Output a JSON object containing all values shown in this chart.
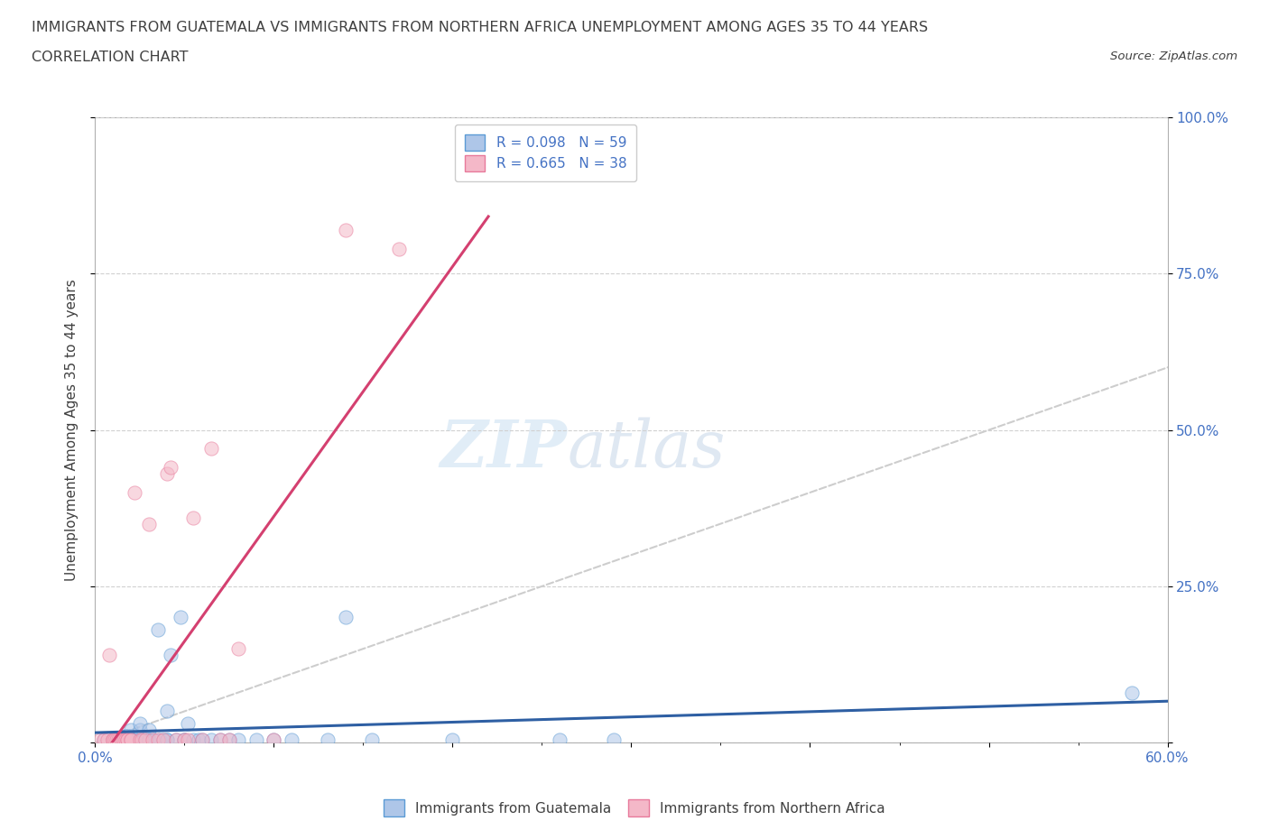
{
  "title_line1": "IMMIGRANTS FROM GUATEMALA VS IMMIGRANTS FROM NORTHERN AFRICA UNEMPLOYMENT AMONG AGES 35 TO 44 YEARS",
  "title_line2": "CORRELATION CHART",
  "source": "Source: ZipAtlas.com",
  "ylabel": "Unemployment Among Ages 35 to 44 years",
  "watermark_zip": "ZIP",
  "watermark_atlas": "atlas",
  "xlim": [
    0,
    0.6
  ],
  "ylim": [
    0,
    1.0
  ],
  "R_guatemala": 0.098,
  "N_guatemala": 59,
  "R_n_africa": 0.665,
  "N_n_africa": 38,
  "legend_label_1": "Immigrants from Guatemala",
  "legend_label_2": "Immigrants from Northern Africa",
  "guatemala_color": "#aec6e8",
  "guatemala_edge": "#5b9bd5",
  "n_africa_color": "#f4b8c8",
  "n_africa_edge": "#e87a9b",
  "trend_color_guatemala": "#2e5fa3",
  "trend_color_n_africa": "#d44070",
  "diagonal_color": "#c8c8c8",
  "label_color": "#4472c4",
  "text_color": "#404040",
  "grid_color": "#d0d0d0",
  "background_color": "#ffffff",
  "title_fontsize": 11.5,
  "subtitle_fontsize": 11.5,
  "source_fontsize": 9.5,
  "axis_label_fontsize": 11,
  "tick_fontsize": 11,
  "legend_fontsize": 11,
  "marker_size": 120,
  "marker_alpha": 0.55,
  "guatemala_x": [
    0.005,
    0.01,
    0.012,
    0.015,
    0.016,
    0.017,
    0.017,
    0.018,
    0.018,
    0.019,
    0.02,
    0.02,
    0.02,
    0.02,
    0.02,
    0.021,
    0.022,
    0.022,
    0.023,
    0.025,
    0.025,
    0.025,
    0.025,
    0.027,
    0.028,
    0.03,
    0.03,
    0.03,
    0.03,
    0.033,
    0.035,
    0.036,
    0.038,
    0.04,
    0.04,
    0.04,
    0.042,
    0.045,
    0.048,
    0.05,
    0.05,
    0.052,
    0.055,
    0.058,
    0.06,
    0.065,
    0.07,
    0.075,
    0.08,
    0.09,
    0.1,
    0.11,
    0.13,
    0.14,
    0.155,
    0.2,
    0.26,
    0.29,
    0.58
  ],
  "guatemala_y": [
    0.005,
    0.005,
    0.005,
    0.005,
    0.005,
    0.01,
    0.01,
    0.01,
    0.01,
    0.005,
    0.005,
    0.005,
    0.01,
    0.01,
    0.02,
    0.005,
    0.005,
    0.005,
    0.005,
    0.005,
    0.005,
    0.02,
    0.03,
    0.005,
    0.005,
    0.005,
    0.005,
    0.02,
    0.005,
    0.005,
    0.18,
    0.005,
    0.005,
    0.005,
    0.005,
    0.05,
    0.14,
    0.005,
    0.2,
    0.005,
    0.005,
    0.03,
    0.005,
    0.005,
    0.005,
    0.005,
    0.005,
    0.005,
    0.005,
    0.005,
    0.005,
    0.005,
    0.005,
    0.2,
    0.005,
    0.005,
    0.005,
    0.005,
    0.08
  ],
  "n_africa_x": [
    0.003,
    0.005,
    0.007,
    0.008,
    0.01,
    0.01,
    0.011,
    0.012,
    0.013,
    0.015,
    0.016,
    0.017,
    0.018,
    0.018,
    0.02,
    0.02,
    0.022,
    0.025,
    0.026,
    0.028,
    0.03,
    0.032,
    0.035,
    0.038,
    0.04,
    0.042,
    0.045,
    0.05,
    0.052,
    0.055,
    0.06,
    0.065,
    0.07,
    0.075,
    0.08,
    0.1,
    0.14,
    0.17
  ],
  "n_africa_y": [
    0.005,
    0.005,
    0.005,
    0.14,
    0.005,
    0.005,
    0.005,
    0.005,
    0.005,
    0.005,
    0.005,
    0.005,
    0.005,
    0.005,
    0.005,
    0.005,
    0.4,
    0.005,
    0.005,
    0.005,
    0.35,
    0.005,
    0.005,
    0.005,
    0.43,
    0.44,
    0.005,
    0.005,
    0.005,
    0.36,
    0.005,
    0.47,
    0.005,
    0.005,
    0.15,
    0.005,
    0.82,
    0.79
  ]
}
